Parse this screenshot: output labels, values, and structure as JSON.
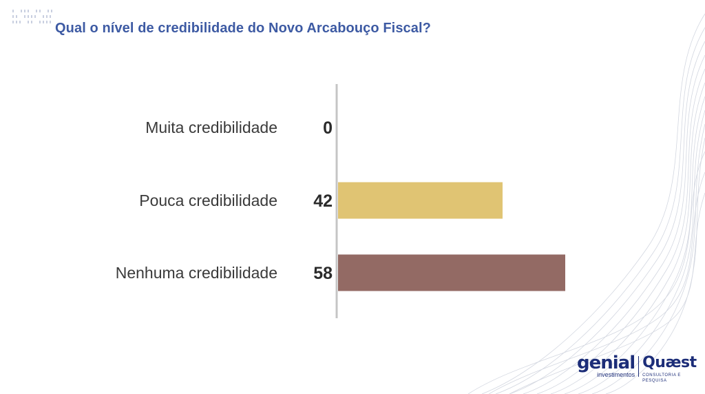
{
  "title": "Qual o nível de credibilidade do Novo Arcabouço Fiscal?",
  "logos": {
    "genial": "genial",
    "genial_sub": "investimentos",
    "quaest": "Quæst",
    "quaest_sub": "CONSULTORIA E PESQUISA"
  },
  "chart_data": {
    "type": "bar",
    "orientation": "horizontal",
    "categories": [
      "Muita credibilidade",
      "Pouca credibilidade",
      "Nenhuma credibilidade"
    ],
    "values": [
      0,
      42,
      58
    ],
    "colors": [
      "#e0c473",
      "#e0c473",
      "#936a64"
    ],
    "xlim": [
      0,
      58
    ],
    "grid": false,
    "legend": "none"
  }
}
